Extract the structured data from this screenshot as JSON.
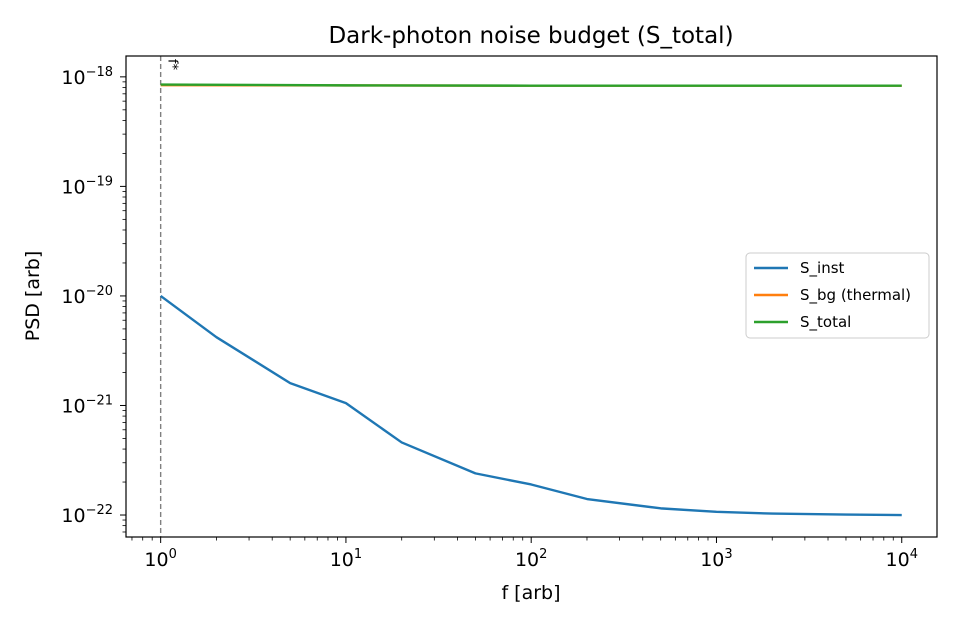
{
  "chart_data": {
    "type": "line",
    "title": "Dark-photon noise budget (S_total)",
    "xlabel": "f [arb]",
    "ylabel": "PSD [arb]",
    "xscale": "log",
    "yscale": "log",
    "xlim": [
      0.65,
      15500
    ],
    "ylim": [
      6.3e-23,
      1.55e-18
    ],
    "x_ticks": [
      {
        "value": 1,
        "base": "10",
        "exp": "0"
      },
      {
        "value": 10,
        "base": "10",
        "exp": "1"
      },
      {
        "value": 100,
        "base": "10",
        "exp": "2"
      },
      {
        "value": 1000,
        "base": "10",
        "exp": "3"
      },
      {
        "value": 10000,
        "base": "10",
        "exp": "4"
      }
    ],
    "y_ticks": [
      {
        "value": 1e-22,
        "base": "10",
        "exp": "−22"
      },
      {
        "value": 1e-21,
        "base": "10",
        "exp": "−21"
      },
      {
        "value": 1e-20,
        "base": "10",
        "exp": "−20"
      },
      {
        "value": 1e-19,
        "base": "10",
        "exp": "−19"
      },
      {
        "value": 1e-18,
        "base": "10",
        "exp": "−18"
      }
    ],
    "grid": false,
    "legend_position": "center-right",
    "series": [
      {
        "name": "S_inst",
        "color": "#1f77b4",
        "x": [
          1,
          2,
          5,
          10,
          20,
          50,
          100,
          200,
          500,
          1000,
          2000,
          5000,
          10000
        ],
        "y": [
          1e-20,
          4.2e-21,
          1.6e-21,
          1.05e-21,
          4.6e-22,
          2.4e-22,
          1.9e-22,
          1.4e-22,
          1.15e-22,
          1.07e-22,
          1.03e-22,
          1.01e-22,
          1e-22
        ]
      },
      {
        "name": "S_bg (thermal)",
        "color": "#ff7f0e",
        "x": [
          1,
          10,
          100,
          1000,
          10000
        ],
        "y": [
          8.4e-19,
          8.35e-19,
          8.3e-19,
          8.3e-19,
          8.3e-19
        ]
      },
      {
        "name": "S_total",
        "color": "#2ca02c",
        "x": [
          1,
          10,
          100,
          1000,
          10000
        ],
        "y": [
          8.5e-19,
          8.36e-19,
          8.31e-19,
          8.3e-19,
          8.3e-19
        ]
      }
    ],
    "annotations": [
      {
        "text": "f*",
        "x": 1,
        "line_color": "#808080",
        "line_style": "dashed"
      }
    ]
  }
}
